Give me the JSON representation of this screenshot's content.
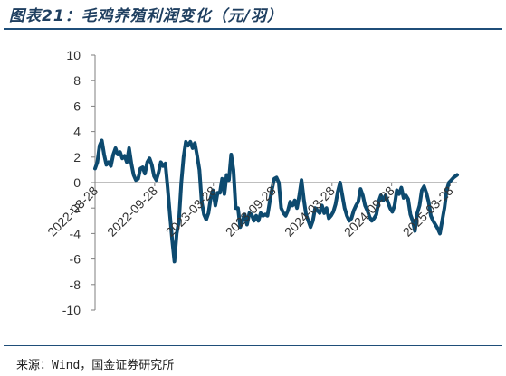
{
  "page": {
    "title": "图表21：毛鸡养殖利润变化（元/羽）",
    "source": "来源：Wind，国金证券研究所"
  },
  "colors": {
    "line": "#0d4a6f",
    "axis": "#7f7f7f",
    "rule": "#1f4e79"
  },
  "chart_data": {
    "type": "line",
    "title": "毛鸡养殖利润变化（元/羽）",
    "xlabel": "",
    "ylabel": "",
    "ylim": [
      -10,
      10
    ],
    "y_ticks": [
      10,
      8,
      6,
      4,
      2,
      0,
      -2,
      -4,
      -6,
      -8,
      -10
    ],
    "x_range": [
      "2022-03-28",
      "2025-04-18"
    ],
    "x_ticks": [
      "2022-03-28",
      "2022-09-28",
      "2023-03-28",
      "2023-09-28",
      "2024-03-28",
      "2024-09-28",
      "2025-03-28"
    ],
    "grid": false,
    "legend": "none",
    "series": [
      {
        "name": "",
        "points": [
          [
            "2022-03-28",
            1.1
          ],
          [
            "2022-04-04",
            1.6
          ],
          [
            "2022-04-11",
            2.9
          ],
          [
            "2022-04-18",
            3.3
          ],
          [
            "2022-04-25",
            2.2
          ],
          [
            "2022-05-02",
            1.4
          ],
          [
            "2022-05-09",
            1.6
          ],
          [
            "2022-05-16",
            1.3
          ],
          [
            "2022-05-23",
            2.2
          ],
          [
            "2022-05-30",
            2.7
          ],
          [
            "2022-06-06",
            2.2
          ],
          [
            "2022-06-13",
            2.4
          ],
          [
            "2022-06-20",
            1.9
          ],
          [
            "2022-06-27",
            2.1
          ],
          [
            "2022-07-04",
            1.6
          ],
          [
            "2022-07-11",
            2.7
          ],
          [
            "2022-07-18",
            1.5
          ],
          [
            "2022-07-25",
            0.6
          ],
          [
            "2022-08-01",
            0.2
          ],
          [
            "2022-08-08",
            0.3
          ],
          [
            "2022-08-15",
            1.1
          ],
          [
            "2022-08-22",
            1.2
          ],
          [
            "2022-08-29",
            0.7
          ],
          [
            "2022-09-05",
            1.6
          ],
          [
            "2022-09-12",
            1.9
          ],
          [
            "2022-09-19",
            1.4
          ],
          [
            "2022-09-26",
            0.5
          ],
          [
            "2022-10-03",
            0.2
          ],
          [
            "2022-10-10",
            0.8
          ],
          [
            "2022-10-17",
            1.6
          ],
          [
            "2022-10-24",
            1.3
          ],
          [
            "2022-10-31",
            1.5
          ],
          [
            "2022-11-07",
            -0.4
          ],
          [
            "2022-11-14",
            -2.5
          ],
          [
            "2022-11-21",
            -4.5
          ],
          [
            "2022-11-28",
            -6.2
          ],
          [
            "2022-12-05",
            -4.0
          ],
          [
            "2022-12-12",
            -3.0
          ],
          [
            "2022-12-19",
            0.0
          ],
          [
            "2022-12-26",
            2.0
          ],
          [
            "2023-01-02",
            3.2
          ],
          [
            "2023-01-09",
            2.9
          ],
          [
            "2023-01-16",
            3.2
          ],
          [
            "2023-01-23",
            2.7
          ],
          [
            "2023-01-30",
            3.1
          ],
          [
            "2023-02-06",
            2.1
          ],
          [
            "2023-02-13",
            1.0
          ],
          [
            "2023-02-20",
            -1.5
          ],
          [
            "2023-02-27",
            -2.5
          ],
          [
            "2023-03-06",
            -2.9
          ],
          [
            "2023-03-13",
            -2.4
          ],
          [
            "2023-03-20",
            -1.2
          ],
          [
            "2023-03-27",
            -0.6
          ],
          [
            "2023-04-03",
            -1.8
          ],
          [
            "2023-04-10",
            -0.8
          ],
          [
            "2023-04-17",
            -0.8
          ],
          [
            "2023-04-24",
            0.3
          ],
          [
            "2023-05-01",
            -0.9
          ],
          [
            "2023-05-08",
            0.6
          ],
          [
            "2023-05-15",
            0.2
          ],
          [
            "2023-05-22",
            2.2
          ],
          [
            "2023-05-29",
            1.0
          ],
          [
            "2023-06-05",
            -2.0
          ],
          [
            "2023-06-12",
            -2.0
          ],
          [
            "2023-06-19",
            -3.5
          ],
          [
            "2023-06-26",
            -3.0
          ],
          [
            "2023-07-03",
            -2.5
          ],
          [
            "2023-07-10",
            -3.3
          ],
          [
            "2023-07-17",
            -2.4
          ],
          [
            "2023-07-24",
            -2.5
          ],
          [
            "2023-07-31",
            -3.0
          ],
          [
            "2023-08-07",
            -2.6
          ],
          [
            "2023-08-14",
            -3.0
          ],
          [
            "2023-08-21",
            -2.4
          ],
          [
            "2023-08-28",
            -2.6
          ],
          [
            "2023-09-04",
            -2.5
          ],
          [
            "2023-09-11",
            -2.6
          ],
          [
            "2023-09-18",
            -1.5
          ],
          [
            "2023-09-25",
            -0.5
          ],
          [
            "2023-10-02",
            0.3
          ],
          [
            "2023-10-09",
            0.4
          ],
          [
            "2023-10-16",
            0.0
          ],
          [
            "2023-10-23",
            -2.0
          ],
          [
            "2023-10-30",
            -2.4
          ],
          [
            "2023-11-06",
            -2.6
          ],
          [
            "2023-11-13",
            -2.2
          ],
          [
            "2023-11-20",
            -1.5
          ],
          [
            "2023-11-27",
            -1.8
          ],
          [
            "2023-12-04",
            -1.4
          ],
          [
            "2023-12-11",
            -2.0
          ],
          [
            "2023-12-18",
            -1.0
          ],
          [
            "2023-12-25",
            0.2
          ],
          [
            "2024-01-01",
            -1.3
          ],
          [
            "2024-01-08",
            -2.5
          ],
          [
            "2024-01-15",
            -3.0
          ],
          [
            "2024-01-22",
            -3.5
          ],
          [
            "2024-01-29",
            -3.0
          ],
          [
            "2024-02-05",
            -2.0
          ],
          [
            "2024-02-12",
            -2.2
          ],
          [
            "2024-02-19",
            -2.4
          ],
          [
            "2024-02-26",
            -1.8
          ],
          [
            "2024-03-04",
            -2.4
          ],
          [
            "2024-03-11",
            -2.0
          ],
          [
            "2024-03-18",
            -2.8
          ],
          [
            "2024-03-25",
            -2.6
          ],
          [
            "2024-04-01",
            -2.3
          ],
          [
            "2024-04-08",
            -1.7
          ],
          [
            "2024-04-15",
            -0.7
          ],
          [
            "2024-04-22",
            0.0
          ],
          [
            "2024-04-29",
            -1.0
          ],
          [
            "2024-05-06",
            -2.0
          ],
          [
            "2024-05-13",
            -2.6
          ],
          [
            "2024-05-20",
            -3.0
          ],
          [
            "2024-05-27",
            -2.8
          ],
          [
            "2024-06-03",
            -2.2
          ],
          [
            "2024-06-10",
            -1.8
          ],
          [
            "2024-06-17",
            -1.5
          ],
          [
            "2024-06-24",
            -0.5
          ],
          [
            "2024-07-01",
            -1.0
          ],
          [
            "2024-07-08",
            -1.8
          ],
          [
            "2024-07-15",
            -2.2
          ],
          [
            "2024-07-22",
            -2.7
          ],
          [
            "2024-07-29",
            -3.0
          ],
          [
            "2024-08-05",
            -2.8
          ],
          [
            "2024-08-12",
            -2.5
          ],
          [
            "2024-08-19",
            -1.5
          ],
          [
            "2024-08-26",
            -1.0
          ],
          [
            "2024-09-02",
            -1.4
          ],
          [
            "2024-09-09",
            -1.0
          ],
          [
            "2024-09-16",
            -1.5
          ],
          [
            "2024-09-23",
            -2.0
          ],
          [
            "2024-09-30",
            -2.3
          ],
          [
            "2024-10-07",
            -1.8
          ],
          [
            "2024-10-14",
            -0.6
          ],
          [
            "2024-10-21",
            -0.9
          ],
          [
            "2024-10-28",
            -0.4
          ],
          [
            "2024-11-04",
            -1.2
          ],
          [
            "2024-11-11",
            -1.0
          ],
          [
            "2024-11-18",
            -1.3
          ],
          [
            "2024-11-25",
            -2.5
          ],
          [
            "2024-12-02",
            -3.0
          ],
          [
            "2024-12-09",
            -3.8
          ],
          [
            "2024-12-16",
            -2.4
          ],
          [
            "2024-12-23",
            -1.8
          ],
          [
            "2024-12-30",
            -0.6
          ],
          [
            "2025-01-06",
            -0.3
          ],
          [
            "2025-01-13",
            -0.8
          ],
          [
            "2025-01-20",
            -1.5
          ],
          [
            "2025-01-27",
            -2.6
          ],
          [
            "2025-02-03",
            -3.0
          ],
          [
            "2025-02-10",
            -3.3
          ],
          [
            "2025-02-17",
            -3.6
          ],
          [
            "2025-02-24",
            -4.0
          ],
          [
            "2025-03-03",
            -3.0
          ],
          [
            "2025-03-10",
            -2.0
          ],
          [
            "2025-03-17",
            -0.6
          ],
          [
            "2025-03-24",
            0.0
          ],
          [
            "2025-03-31",
            0.2
          ],
          [
            "2025-04-07",
            0.4
          ],
          [
            "2025-04-18",
            0.6
          ]
        ]
      }
    ]
  }
}
